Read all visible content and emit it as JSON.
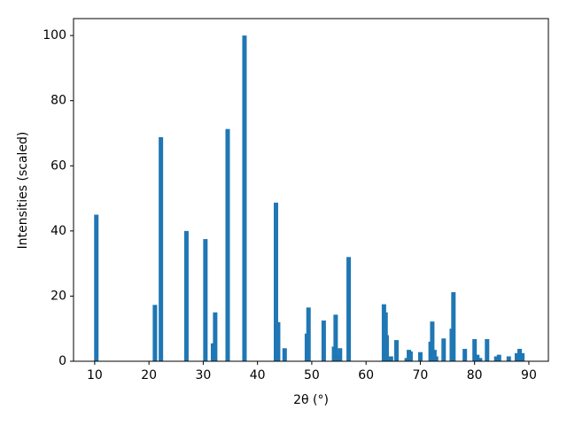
{
  "chart_data": {
    "type": "bar",
    "x_label": "2θ (°)",
    "y_label": "Intensities (scaled)",
    "x": [
      10.3,
      21.1,
      22.2,
      26.9,
      30.4,
      31.8,
      32.2,
      34.5,
      37.6,
      43.4,
      43.8,
      45.0,
      49.1,
      49.4,
      52.2,
      54.1,
      54.4,
      54.8,
      55.2,
      56.8,
      63.3,
      63.6,
      63.8,
      64.6,
      65.6,
      67.5,
      67.9,
      68.2,
      70.0,
      71.9,
      72.2,
      72.6,
      72.9,
      74.3,
      75.8,
      76.1,
      78.2,
      80.0,
      80.5,
      81.0,
      82.3,
      84.0,
      84.5,
      86.3,
      87.8,
      88.3,
      88.8
    ],
    "values": [
      45,
      17.3,
      68.8,
      40,
      37.5,
      5.5,
      15,
      71.3,
      100,
      48.7,
      12,
      4,
      8.5,
      16.5,
      12.5,
      4.5,
      14.3,
      2,
      4,
      32,
      17.5,
      15,
      8,
      1.5,
      6.5,
      1,
      3.5,
      3,
      2.8,
      6,
      12.2,
      3.5,
      1.5,
      7,
      10,
      21.2,
      3.8,
      6.8,
      2,
      1,
      6.8,
      1.5,
      2,
      1.5,
      2.5,
      3.8,
      2.5
    ],
    "color": "#1f77b4",
    "xlim": [
      6.1,
      93.6
    ],
    "ylim": [
      0,
      105.2
    ],
    "xticks": [
      10,
      20,
      30,
      40,
      50,
      60,
      70,
      80,
      90
    ],
    "yticks": [
      0,
      20,
      40,
      60,
      80,
      100
    ]
  }
}
